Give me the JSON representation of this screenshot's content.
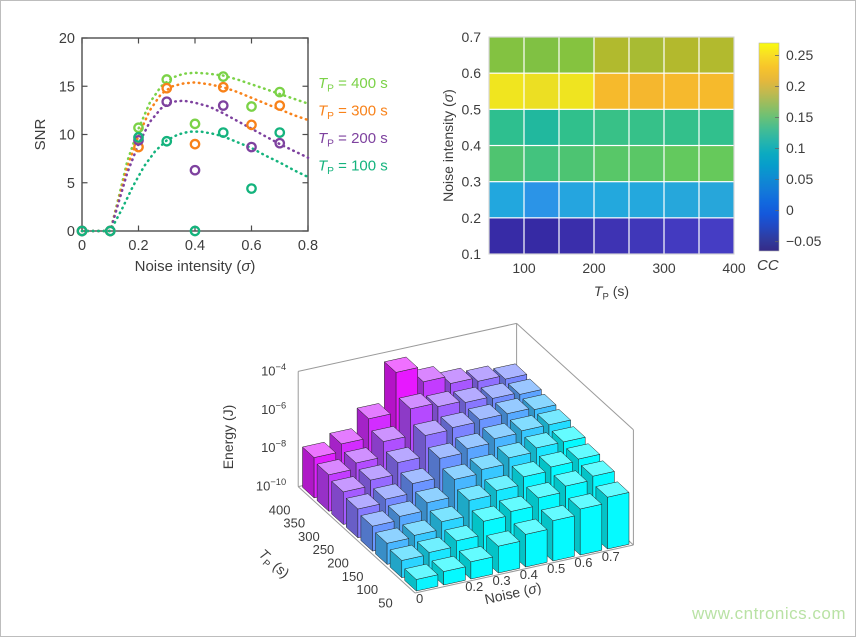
{
  "watermark": {
    "text": "www.cntronics.com",
    "color": "#b9e2a5"
  },
  "chart_data": [
    {
      "id": "snr_vs_noise",
      "type": "scatter",
      "xlabel": "Noise intensity (σ)",
      "ylabel": "SNR",
      "xlim": [
        0,
        0.8
      ],
      "ylim": [
        0,
        20
      ],
      "xtick_labels": [
        "0",
        "0.2",
        "0.4",
        "0.6",
        "0.8"
      ],
      "xtick_values": [
        0,
        0.2,
        0.4,
        0.6,
        0.8
      ],
      "ytick_labels": [
        "0",
        "5",
        "10",
        "15",
        "20"
      ],
      "ytick_values": [
        0,
        5,
        10,
        15,
        20
      ],
      "legend_position": "right-outside",
      "series": [
        {
          "name": "T_P = 400 s",
          "color": "#7bd247",
          "points": [
            [
              0,
              0
            ],
            [
              0.1,
              0
            ],
            [
              0.2,
              10.7
            ],
            [
              0.3,
              15.7
            ],
            [
              0.4,
              11.1
            ],
            [
              0.5,
              16.0
            ],
            [
              0.6,
              12.9
            ],
            [
              0.7,
              14.4
            ]
          ],
          "fit_curve": [
            [
              0,
              0
            ],
            [
              0.1,
              0
            ],
            [
              0.13,
              3.5
            ],
            [
              0.16,
              7.2
            ],
            [
              0.2,
              10.6
            ],
            [
              0.24,
              13.3
            ],
            [
              0.28,
              15.0
            ],
            [
              0.32,
              15.9
            ],
            [
              0.36,
              16.3
            ],
            [
              0.4,
              16.4
            ],
            [
              0.45,
              16.3
            ],
            [
              0.5,
              16.1
            ],
            [
              0.55,
              15.7
            ],
            [
              0.6,
              15.2
            ],
            [
              0.65,
              14.7
            ],
            [
              0.7,
              14.2
            ],
            [
              0.75,
              13.7
            ],
            [
              0.8,
              13.2
            ]
          ]
        },
        {
          "name": "T_P = 300 s",
          "color": "#f8821a",
          "points": [
            [
              0,
              0
            ],
            [
              0.1,
              0
            ],
            [
              0.2,
              8.7
            ],
            [
              0.3,
              14.8
            ],
            [
              0.4,
              9.0
            ],
            [
              0.5,
              14.9
            ],
            [
              0.6,
              11.0
            ],
            [
              0.7,
              13.0
            ]
          ],
          "fit_curve": [
            [
              0,
              0
            ],
            [
              0.1,
              0
            ],
            [
              0.13,
              3.2
            ],
            [
              0.16,
              6.6
            ],
            [
              0.2,
              9.9
            ],
            [
              0.24,
              12.5
            ],
            [
              0.28,
              14.2
            ],
            [
              0.32,
              15.0
            ],
            [
              0.36,
              15.3
            ],
            [
              0.4,
              15.4
            ],
            [
              0.45,
              15.2
            ],
            [
              0.5,
              14.9
            ],
            [
              0.55,
              14.4
            ],
            [
              0.6,
              13.8
            ],
            [
              0.65,
              13.2
            ],
            [
              0.7,
              12.6
            ],
            [
              0.75,
              12.0
            ],
            [
              0.8,
              11.5
            ]
          ]
        },
        {
          "name": "T_P = 200 s",
          "color": "#7e429f",
          "points": [
            [
              0,
              0
            ],
            [
              0.1,
              0
            ],
            [
              0.2,
              9.4
            ],
            [
              0.3,
              13.4
            ],
            [
              0.4,
              6.3
            ],
            [
              0.5,
              13.0
            ],
            [
              0.6,
              8.7
            ],
            [
              0.7,
              9.1
            ]
          ],
          "fit_curve": [
            [
              0,
              0
            ],
            [
              0.1,
              0
            ],
            [
              0.13,
              3.0
            ],
            [
              0.16,
              6.0
            ],
            [
              0.2,
              9.0
            ],
            [
              0.24,
              11.3
            ],
            [
              0.28,
              12.7
            ],
            [
              0.32,
              13.4
            ],
            [
              0.36,
              13.5
            ],
            [
              0.4,
              13.3
            ],
            [
              0.45,
              12.9
            ],
            [
              0.5,
              12.2
            ],
            [
              0.55,
              11.4
            ],
            [
              0.6,
              10.6
            ],
            [
              0.65,
              9.8
            ],
            [
              0.7,
              9.0
            ],
            [
              0.75,
              8.3
            ],
            [
              0.8,
              7.6
            ]
          ]
        },
        {
          "name": "T_P = 100 s",
          "color": "#14b37d",
          "points": [
            [
              0,
              0
            ],
            [
              0.1,
              0
            ],
            [
              0.2,
              9.7
            ],
            [
              0.3,
              9.3
            ],
            [
              0.4,
              0
            ],
            [
              0.5,
              10.2
            ],
            [
              0.6,
              4.4
            ],
            [
              0.7,
              10.2
            ]
          ],
          "fit_curve": [
            [
              0,
              0
            ],
            [
              0.1,
              0
            ],
            [
              0.14,
              2.2
            ],
            [
              0.18,
              4.6
            ],
            [
              0.22,
              6.7
            ],
            [
              0.26,
              8.3
            ],
            [
              0.3,
              9.4
            ],
            [
              0.34,
              10.0
            ],
            [
              0.38,
              10.3
            ],
            [
              0.42,
              10.3
            ],
            [
              0.46,
              10.1
            ],
            [
              0.5,
              9.8
            ],
            [
              0.55,
              9.2
            ],
            [
              0.6,
              8.6
            ],
            [
              0.65,
              7.8
            ],
            [
              0.7,
              7.1
            ],
            [
              0.75,
              6.3
            ],
            [
              0.8,
              5.6
            ]
          ]
        }
      ]
    },
    {
      "id": "cc_heatmap",
      "type": "heatmap",
      "xlabel": "T_P (s)",
      "ylabel": "Noise intensity (σ)",
      "x_range": [
        50,
        400
      ],
      "xtick_labels": [
        "100",
        "200",
        "300",
        "400"
      ],
      "xtick_values": [
        100,
        200,
        300,
        400
      ],
      "ytick_labels_top_to_bottom": [
        "0.7",
        "0.6",
        "0.5",
        "0.4",
        "0.3",
        "0.2",
        "0.1"
      ],
      "rows_top_to_bottom": [
        {
          "noise_band": "0.6-0.7",
          "values": [
            0.16,
            0.16,
            0.16,
            0.19,
            0.18,
            0.19,
            0.19
          ],
          "colors": [
            "#83c241",
            "#80c143",
            "#85c33f",
            "#b1ba2e",
            "#a8bb33",
            "#b3b92d",
            "#b2ba2e"
          ]
        },
        {
          "noise_band": "0.5-0.6",
          "values": [
            0.27,
            0.26,
            0.27,
            0.23,
            0.22,
            0.23,
            0.23
          ],
          "colors": [
            "#f0e51f",
            "#ecdf23",
            "#efe420",
            "#f6ba2c",
            "#f5b72e",
            "#f6b92d",
            "#f6ba2c"
          ]
        },
        {
          "noise_band": "0.4-0.5",
          "values": [
            0.11,
            0.1,
            0.11,
            0.12,
            0.12,
            0.11,
            0.11
          ],
          "colors": [
            "#2ebf8f",
            "#21b89e",
            "#30c08c",
            "#38c187",
            "#36c189",
            "#33c08b",
            "#31c08d"
          ]
        },
        {
          "noise_band": "0.3-0.4",
          "values": [
            0.14,
            0.13,
            0.14,
            0.15,
            0.15,
            0.15,
            0.15
          ],
          "colors": [
            "#4fc470",
            "#43c37e",
            "#4dc472",
            "#58c768",
            "#5ac766",
            "#63c95e",
            "#66c95b"
          ]
        },
        {
          "noise_band": "0.2-0.3",
          "values": [
            0.05,
            0.04,
            0.05,
            0.05,
            0.05,
            0.05,
            0.05
          ],
          "colors": [
            "#22a7de",
            "#2b94e7",
            "#25a5df",
            "#23a8dd",
            "#24a8dd",
            "#26a7db",
            "#27a6da"
          ]
        },
        {
          "noise_band": "0.1-0.2",
          "values": [
            -0.06,
            -0.06,
            -0.055,
            -0.05,
            -0.05,
            -0.045,
            -0.045
          ],
          "colors": [
            "#372ba6",
            "#362aa4",
            "#3a2eab",
            "#3e33b3",
            "#4037b9",
            "#433ac0",
            "#453dc4"
          ]
        }
      ],
      "colorbar": {
        "label": "CC",
        "range": [
          -0.065,
          0.27
        ],
        "tick_labels": [
          "0.25",
          "0.2",
          "0.15",
          "0.1",
          "0.05",
          "0",
          "−0.05"
        ],
        "tick_values": [
          0.25,
          0.2,
          0.15,
          0.1,
          0.05,
          0,
          -0.05
        ],
        "gradient_bottom_to_top": [
          "#352a87",
          "#2f3c9f",
          "#2249c2",
          "#1458db",
          "#1169de",
          "#127bd8",
          "#0e8cd2",
          "#079dcb",
          "#0cabc0",
          "#27b5ab",
          "#45bd92",
          "#6cc175",
          "#98bd5f",
          "#c3b94e",
          "#e7b83a",
          "#f7c42b",
          "#f9dd25",
          "#f9fb0e"
        ]
      }
    },
    {
      "id": "energy_bar3d",
      "type": "bar",
      "projection": "3d",
      "zlabel": "Energy (J)",
      "xlabel": "Noise (σ)",
      "ylabel": "T_P (s)",
      "zscale": "log",
      "ztick_exponents": [
        -4,
        -6,
        -8,
        -10
      ],
      "zlim_exponents": [
        -10,
        -4
      ],
      "tp_values": [
        50,
        100,
        150,
        200,
        250,
        300,
        350,
        400
      ],
      "tp_tick_labels": [
        "50",
        "100",
        "150",
        "200",
        "250",
        "300",
        "350",
        "400"
      ],
      "noise_values": [
        0,
        0.1,
        0.2,
        0.3,
        0.4,
        0.5,
        0.6,
        0.7
      ],
      "noise_tick_labels": [
        {
          "label": "0",
          "col": 0
        },
        {
          "label": "0.2",
          "col": 2
        },
        {
          "label": "0.3",
          "col": 3
        },
        {
          "label": "0.4",
          "col": 4
        },
        {
          "label": "0.5",
          "col": 5
        },
        {
          "label": "0.6",
          "col": 6
        },
        {
          "label": "0.7",
          "col": 7
        }
      ],
      "log10_energy_rows_tp50_to_tp400": [
        [
          -9.4,
          -9.3,
          -9.1,
          -8.6,
          -8.3,
          -7.9,
          -7.6,
          -7.3
        ],
        [
          -9.1,
          -9.0,
          -8.7,
          -8.0,
          -7.8,
          -7.4,
          -7.1,
          -6.9
        ],
        [
          -8.9,
          -8.8,
          -8.4,
          -7.6,
          -7.4,
          -7.0,
          -6.8,
          -6.7
        ],
        [
          -8.7,
          -8.5,
          -8.1,
          -7.2,
          -7.0,
          -6.7,
          -6.5,
          -6.5
        ],
        [
          -8.5,
          -8.3,
          -7.8,
          -6.8,
          -6.6,
          -6.4,
          -6.3,
          -6.3
        ],
        [
          -8.3,
          -8.0,
          -7.4,
          -6.3,
          -6.2,
          -6.1,
          -6.1,
          -6.2
        ],
        [
          -8.1,
          -7.8,
          -7.0,
          -5.6,
          -5.8,
          -5.9,
          -6.0,
          -6.1
        ],
        [
          -7.9,
          -7.5,
          -6.5,
          -4.4,
          -5.2,
          -5.6,
          -5.8,
          -6.0
        ]
      ],
      "colormap": {
        "name": "cool",
        "low": "#00ffff",
        "high": "#ff00ff"
      }
    }
  ]
}
